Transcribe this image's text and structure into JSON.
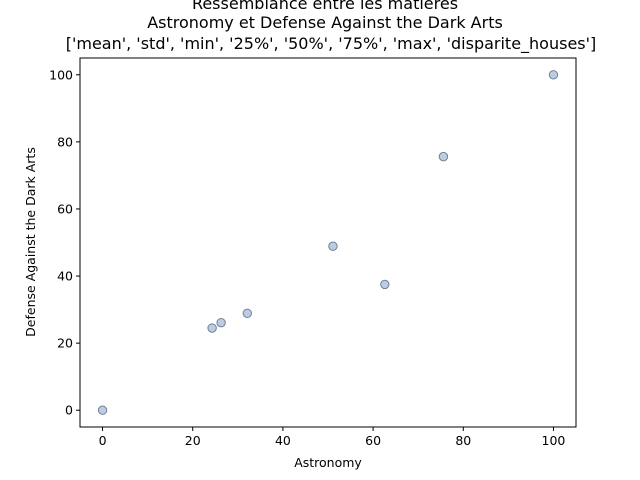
{
  "chart_data": {
    "type": "scatter",
    "title_lines": [
      "Ressemblance entre les matières",
      "Astronomy et Defense Against the Dark Arts",
      "['mean', 'std', 'min', '25%', '50%', '75%', 'max', 'disparite_houses']"
    ],
    "xlabel": "Astronomy",
    "ylabel": "Defense Against the Dark Arts",
    "xlim": [
      -5,
      105
    ],
    "ylim": [
      -5,
      105
    ],
    "xticks": [
      0,
      20,
      40,
      60,
      80,
      100
    ],
    "yticks": [
      0,
      20,
      40,
      60,
      80,
      100
    ],
    "grid": false,
    "point_color": "#b0c4de",
    "point_edge_color": "#708090",
    "points": [
      {
        "x": 0,
        "y": 0
      },
      {
        "x": 24.3,
        "y": 24.5
      },
      {
        "x": 26.3,
        "y": 26.1
      },
      {
        "x": 32.1,
        "y": 28.9
      },
      {
        "x": 51.1,
        "y": 48.9
      },
      {
        "x": 62.6,
        "y": 37.5
      },
      {
        "x": 75.6,
        "y": 75.6
      },
      {
        "x": 100,
        "y": 100
      }
    ]
  }
}
